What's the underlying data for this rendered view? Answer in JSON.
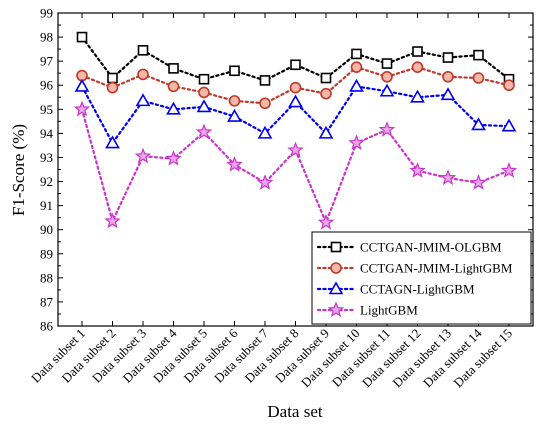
{
  "chart_data": {
    "type": "line",
    "xlabel": "Data set",
    "ylabel": "F1-Score (%)",
    "ylim": [
      86,
      99
    ],
    "yticks": [
      86,
      87,
      88,
      89,
      90,
      91,
      92,
      93,
      94,
      95,
      96,
      97,
      98,
      99
    ],
    "categories": [
      "Data subset 1",
      "Data subset 2",
      "Data subset 3",
      "Data subset 4",
      "Data subset 5",
      "Data subset 6",
      "Data subset 7",
      "Data subset 8",
      "Data subset 9",
      "Data subset 10",
      "Data subset 11",
      "Data subset 12",
      "Data subset 13",
      "Data subset 14",
      "Data subset 15"
    ],
    "grid": false,
    "legend_position": "bottom-right",
    "series": [
      {
        "name": "CCTGAN-JMIM-OLGBM",
        "color": "#000000",
        "marker": "square",
        "values": [
          98.0,
          96.3,
          97.45,
          96.7,
          96.25,
          96.6,
          96.2,
          96.85,
          96.3,
          97.3,
          96.9,
          97.4,
          97.15,
          97.25,
          96.25
        ]
      },
      {
        "name": "CCTGAN-JMIM-LightGBM",
        "color": "#c0392b",
        "marker": "circle",
        "values": [
          96.4,
          95.9,
          96.45,
          95.95,
          95.7,
          95.35,
          95.25,
          95.9,
          95.65,
          96.75,
          96.35,
          96.75,
          96.35,
          96.3,
          96.0
        ]
      },
      {
        "name": "CCTAGN-LightGBM",
        "color": "#0000ee",
        "marker": "triangle",
        "values": [
          95.95,
          93.6,
          95.35,
          95.0,
          95.1,
          94.7,
          94.0,
          95.3,
          94.0,
          95.95,
          95.75,
          95.5,
          95.6,
          94.35,
          94.3
        ]
      },
      {
        "name": "LightGBM",
        "color": "#cc33cc",
        "marker": "star",
        "values": [
          95.0,
          90.35,
          93.05,
          92.95,
          94.05,
          92.7,
          91.95,
          93.3,
          90.3,
          93.6,
          94.15,
          92.45,
          92.15,
          91.95,
          92.45
        ]
      }
    ]
  }
}
